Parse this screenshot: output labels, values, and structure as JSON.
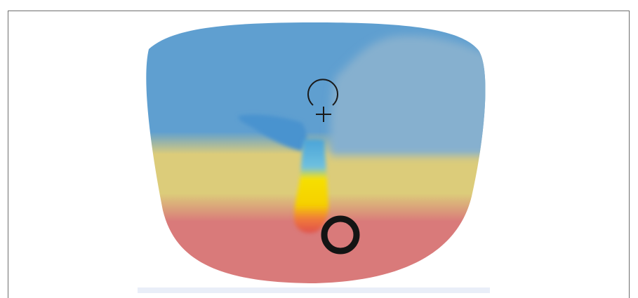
{
  "diagram": {
    "zones": [
      {
        "name": "distance-zone",
        "color": "#5f9fd0"
      },
      {
        "name": "distance-zone-light",
        "color": "#86b0cf"
      },
      {
        "name": "intermediate-zone",
        "color": "#dccc7a"
      },
      {
        "name": "corridor-highlight",
        "color": "#f7e000"
      },
      {
        "name": "near-zone",
        "color": "#d97a7a"
      }
    ],
    "markers": [
      {
        "name": "fitting-cross",
        "icon": "plus-icon"
      },
      {
        "name": "distance-reference-arc",
        "icon": "arc-icon"
      },
      {
        "name": "near-reference-circle",
        "icon": "ring-icon"
      }
    ]
  }
}
